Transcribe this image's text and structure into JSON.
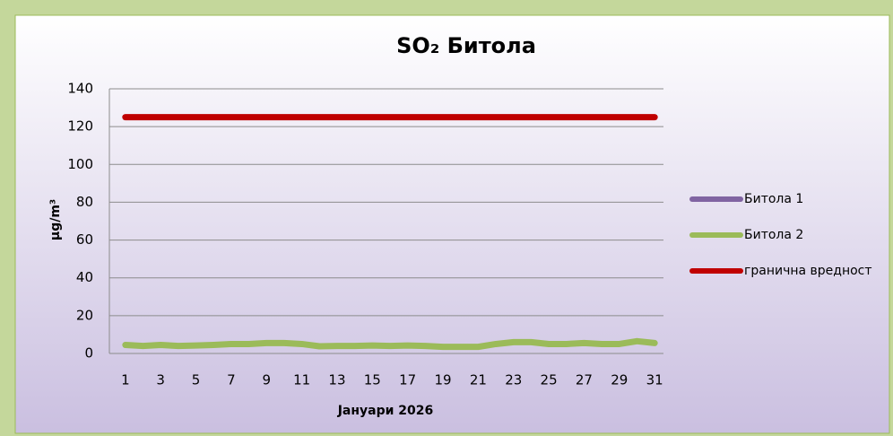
{
  "chart_data": {
    "type": "line",
    "title": "SO₂ Битола",
    "xlabel": "Јануари 2026",
    "ylabel": "μg/m³",
    "categories": [
      "1",
      null,
      "3",
      null,
      "5",
      null,
      "7",
      null,
      "9",
      null,
      "11",
      null,
      "13",
      null,
      "15",
      null,
      "17",
      null,
      "19",
      null,
      "21",
      null,
      "23",
      null,
      "25",
      null,
      "27",
      null,
      "29",
      null,
      "31"
    ],
    "series": [
      {
        "name": "Битола 1",
        "color": "#8064a2",
        "values": [
          null,
          null,
          null,
          null,
          null,
          null,
          null,
          null,
          null,
          null,
          null,
          null,
          null,
          null,
          null,
          null,
          null,
          null,
          null,
          null,
          null,
          null,
          null,
          null,
          null,
          null,
          null,
          null,
          null,
          null,
          null
        ]
      },
      {
        "name": "Битола 2",
        "color": "#9bbb59",
        "values": [
          4.5,
          4,
          4.5,
          4,
          4.2,
          4.5,
          5,
          5,
          5.5,
          5.5,
          5,
          3.8,
          4,
          4,
          4.2,
          4,
          4.2,
          4,
          3.5,
          3.5,
          3.5,
          5,
          6,
          6,
          5,
          5,
          5.5,
          5,
          5,
          6.5,
          5.5
        ]
      },
      {
        "name": "гранична вредност",
        "color": "#c00000",
        "values": [
          125,
          125,
          125,
          125,
          125,
          125,
          125,
          125,
          125,
          125,
          125,
          125,
          125,
          125,
          125,
          125,
          125,
          125,
          125,
          125,
          125,
          125,
          125,
          125,
          125,
          125,
          125,
          125,
          125,
          125,
          125
        ]
      }
    ],
    "ylim": [
      0,
      140
    ],
    "yticks": [
      0,
      20,
      40,
      60,
      80,
      100,
      120,
      140
    ],
    "grid": true,
    "legend": "right"
  }
}
